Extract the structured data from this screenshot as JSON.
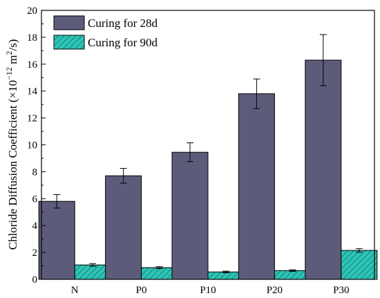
{
  "chart_data": {
    "type": "bar",
    "title": "",
    "xlabel": "",
    "ylabel": "Chloride Diffusion Coefficient (×10",
    "ylabel_exp": "−12",
    "ylabel_unit": " m",
    "ylabel_unit_exp": "2",
    "ylabel_tail": "/s)",
    "ylim": [
      0,
      20
    ],
    "yticks": [
      "0",
      "2",
      "4",
      "6",
      "8",
      "10",
      "12",
      "14",
      "16",
      "18",
      "20"
    ],
    "categories": [
      "N",
      "P0",
      "P10",
      "P20",
      "P30"
    ],
    "grid": false,
    "legend_position": "top-left",
    "series": [
      {
        "name": "Curing for 28d",
        "color": "#5c5c7a",
        "pattern": "solid",
        "values": [
          5.8,
          7.7,
          9.45,
          13.8,
          16.3
        ],
        "errors": [
          0.5,
          0.55,
          0.7,
          1.1,
          1.9
        ]
      },
      {
        "name": "Curing for 90d",
        "color": "#2ec4b6",
        "pattern": "hatched",
        "values": [
          1.07,
          0.87,
          0.55,
          0.65,
          2.15
        ],
        "errors": [
          0.1,
          0.07,
          0.06,
          0.06,
          0.13
        ]
      }
    ]
  }
}
